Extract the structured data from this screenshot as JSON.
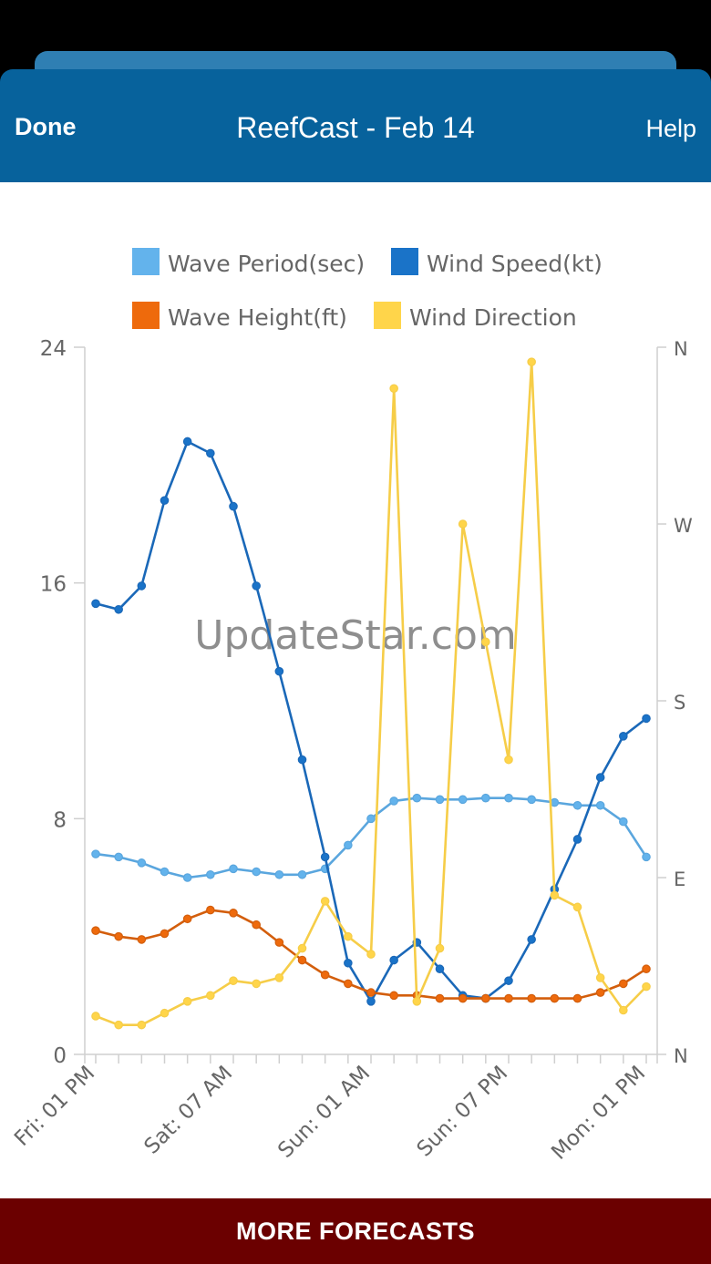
{
  "header": {
    "done_label": "Done",
    "title": "ReefCast - Feb 14",
    "help_label": "Help",
    "bg_color": "#07629c"
  },
  "watermark": "UpdateStar.com",
  "footer": {
    "label": "MORE FORECASTS",
    "bg_color": "#6b0000"
  },
  "chart_data": {
    "type": "line",
    "title": "",
    "legend_position": "top",
    "grid": false,
    "x": [
      "Fri: 01 PM",
      "Fri: 04 PM",
      "Fri: 07 PM",
      "Fri: 10 PM",
      "Sat: 01 AM",
      "Sat: 04 AM",
      "Sat: 07 AM",
      "Sat: 10 AM",
      "Sat: 01 PM",
      "Sat: 04 PM",
      "Sat: 07 PM",
      "Sat: 10 PM",
      "Sun: 01 AM",
      "Sun: 04 AM",
      "Sun: 07 AM",
      "Sun: 10 AM",
      "Sun: 01 PM",
      "Sun: 04 PM",
      "Sun: 07 PM",
      "Sun: 10 PM",
      "Mon: 01 AM",
      "Mon: 04 AM",
      "Mon: 07 AM",
      "Mon: 10 AM",
      "Mon: 01 PM"
    ],
    "x_tick_labels": [
      "Fri: 01 PM",
      "Sat: 07 AM",
      "Sun: 01 AM",
      "Sun: 07 PM",
      "Mon: 01 PM"
    ],
    "x_tick_label_indices": [
      0,
      6,
      12,
      18,
      24
    ],
    "y_left": {
      "ylim": [
        0,
        24
      ],
      "ticks": [
        "0",
        "8",
        "16",
        "24"
      ]
    },
    "y_right": {
      "ticks": [
        "N",
        "E",
        "S",
        "W",
        "N"
      ]
    },
    "series": [
      {
        "name": "Wave Period(sec)",
        "color": "#63b3ec",
        "stroke": "#5aa6de",
        "values": [
          6.8,
          6.7,
          6.5,
          6.2,
          6.0,
          6.1,
          6.3,
          6.2,
          6.1,
          6.1,
          6.3,
          7.1,
          8.0,
          8.6,
          8.7,
          8.65,
          8.65,
          8.7,
          8.7,
          8.65,
          8.55,
          8.45,
          8.45,
          7.9,
          6.7
        ]
      },
      {
        "name": "Wind Speed(kt)",
        "color": "#1a73c8",
        "stroke": "#1a68b8",
        "values": [
          15.3,
          15.1,
          15.9,
          18.8,
          20.8,
          20.4,
          18.6,
          15.9,
          13.0,
          10.0,
          6.7,
          3.1,
          1.8,
          3.2,
          3.8,
          2.9,
          2.0,
          1.9,
          2.5,
          3.9,
          5.6,
          7.3,
          9.4,
          10.8,
          11.4
        ]
      },
      {
        "name": "Wave Height(ft)",
        "color": "#ee6a0c",
        "stroke": "#d35e0c",
        "values": [
          4.2,
          4.0,
          3.9,
          4.1,
          4.6,
          4.9,
          4.8,
          4.4,
          3.8,
          3.2,
          2.7,
          2.4,
          2.1,
          2.0,
          2.0,
          1.9,
          1.9,
          1.9,
          1.9,
          1.9,
          1.9,
          1.9,
          2.1,
          2.4,
          2.9
        ]
      },
      {
        "name": "Wind Direction",
        "color": "#ffd54a",
        "stroke": "#f6cd48",
        "values": [
          1.3,
          1.0,
          1.0,
          1.4,
          1.8,
          2.0,
          2.5,
          2.4,
          2.6,
          3.6,
          5.2,
          4.0,
          3.4,
          22.6,
          1.8,
          3.6,
          18.0,
          14.0,
          10.0,
          23.5,
          5.4,
          5.0,
          2.6,
          1.5,
          2.3
        ]
      }
    ]
  }
}
